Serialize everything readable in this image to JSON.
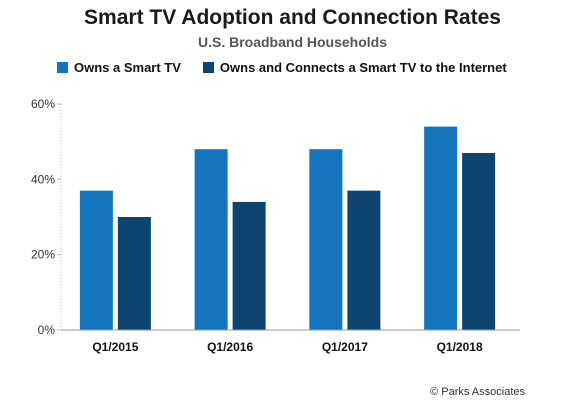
{
  "chart_data": {
    "type": "bar",
    "title": "Smart TV Adoption and Connection Rates",
    "subtitle": "U.S. Broadband Households",
    "categories": [
      "Q1/2015",
      "Q1/2016",
      "Q1/2017",
      "Q1/2018"
    ],
    "series": [
      {
        "name": "Owns a Smart TV",
        "color": "#1475BE",
        "values": [
          37,
          48,
          48,
          54
        ]
      },
      {
        "name": "Owns and Connects a Smart TV to the Internet",
        "color": "#0E4470",
        "values": [
          30,
          34,
          37,
          47
        ]
      }
    ],
    "ylim": [
      0,
      60
    ],
    "yticks": [
      0,
      20,
      40,
      60
    ],
    "ytick_labels": [
      "0%",
      "20%",
      "40%",
      "60%"
    ],
    "xlabel": "",
    "ylabel": "",
    "grid": false,
    "legend_position": "top-left"
  },
  "source": "© Parks Associates"
}
